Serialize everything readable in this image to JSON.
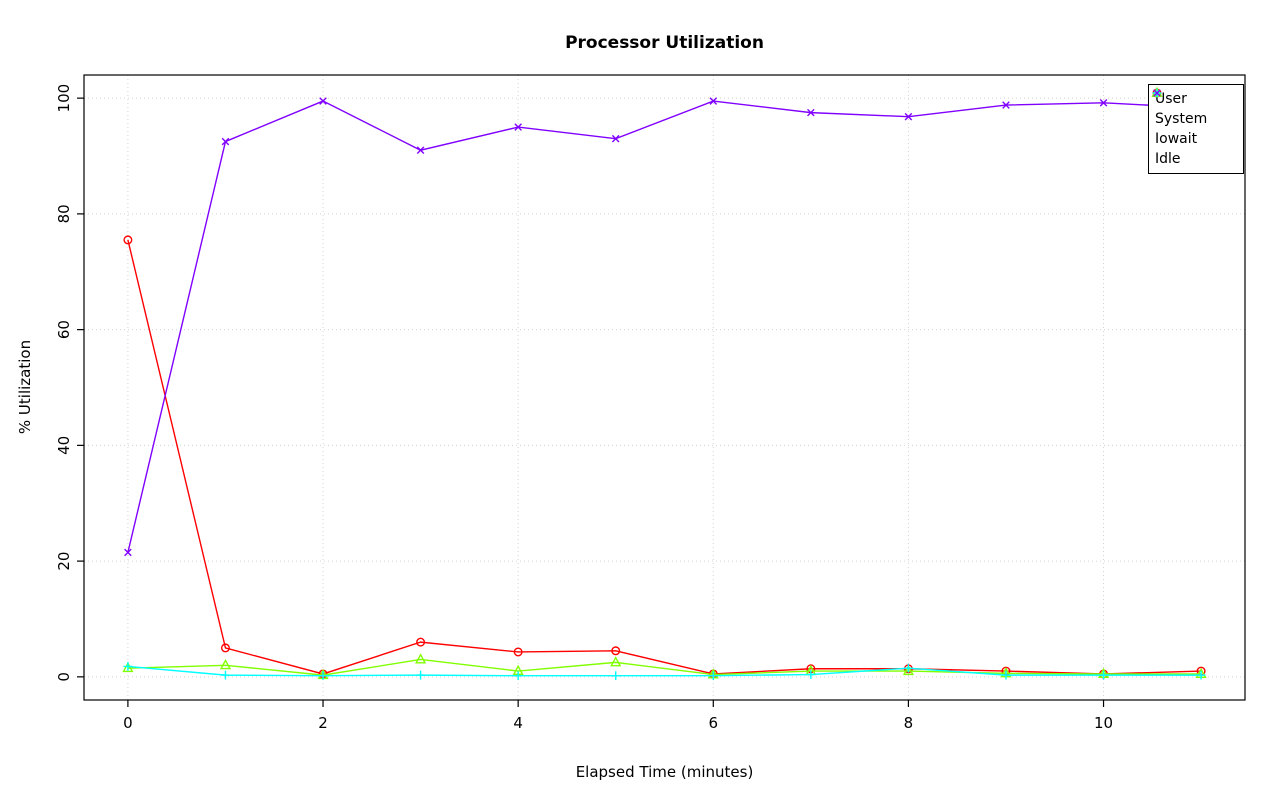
{
  "chart_data": {
    "type": "line",
    "title": "Processor Utilization",
    "xlabel": "Elapsed Time (minutes)",
    "ylabel": "% Utilization",
    "x": [
      0,
      1,
      2,
      3,
      4,
      5,
      6,
      7,
      8,
      9,
      10,
      11
    ],
    "xlim": [
      -0.45,
      11.45
    ],
    "ylim": [
      -4,
      104
    ],
    "xticks": [
      0,
      2,
      4,
      6,
      8,
      10
    ],
    "yticks": [
      0,
      20,
      40,
      60,
      80,
      100
    ],
    "grid": true,
    "grid_color": "#d3d3d3",
    "legend_position": "top-right",
    "series": [
      {
        "name": "User",
        "color": "#ff0000",
        "marker": "circle",
        "values": [
          75.5,
          5.0,
          0.5,
          6.0,
          4.3,
          4.5,
          0.5,
          1.4,
          1.4,
          1.0,
          0.5,
          1.0
        ]
      },
      {
        "name": "System",
        "color": "#80ff00",
        "marker": "triangle",
        "values": [
          1.5,
          2.0,
          0.3,
          3.0,
          1.0,
          2.5,
          0.4,
          1.0,
          1.0,
          0.6,
          0.5,
          0.5
        ]
      },
      {
        "name": "Iowait",
        "color": "#00ffff",
        "marker": "plus",
        "values": [
          1.8,
          0.3,
          0.2,
          0.3,
          0.2,
          0.2,
          0.2,
          0.4,
          1.5,
          0.3,
          0.3,
          0.3
        ]
      },
      {
        "name": "Idle",
        "color": "#8000ff",
        "marker": "x",
        "values": [
          21.5,
          92.5,
          99.5,
          91.0,
          95.0,
          93.0,
          99.5,
          97.5,
          96.8,
          98.8,
          99.2,
          98.3
        ]
      }
    ]
  }
}
